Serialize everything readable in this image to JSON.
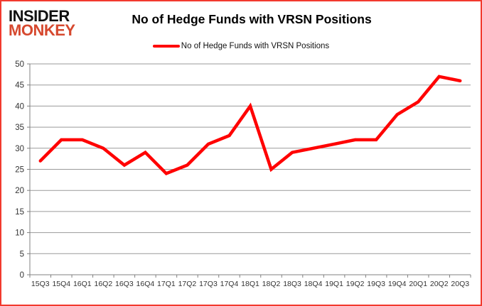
{
  "logo": {
    "line1": "INSIDER",
    "line2": "MONKEY"
  },
  "header": {
    "title": "No of Hedge Funds with VRSN Positions"
  },
  "legend": {
    "label": "No of Hedge Funds with VRSN Positions"
  },
  "chart_data": {
    "type": "line",
    "title": "No of Hedge Funds with VRSN Positions",
    "series_name": "No of Hedge Funds with VRSN Positions",
    "categories": [
      "15Q3",
      "15Q4",
      "16Q1",
      "16Q2",
      "16Q3",
      "16Q4",
      "17Q1",
      "17Q2",
      "17Q3",
      "17Q4",
      "18Q1",
      "18Q2",
      "18Q3",
      "18Q4",
      "19Q1",
      "19Q2",
      "19Q3",
      "19Q4",
      "20Q1",
      "20Q2",
      "20Q3"
    ],
    "values": [
      27,
      32,
      32,
      30,
      26,
      29,
      24,
      26,
      31,
      33,
      40,
      25,
      29,
      30,
      31,
      32,
      32,
      38,
      41,
      47,
      46
    ],
    "xlabel": "",
    "ylabel": "",
    "ylim": [
      0,
      50
    ],
    "ytick_step": 5,
    "grid": true,
    "legend_position": "top",
    "line_color": "#ff0000",
    "grid_color": "#9a9a9a",
    "axis_color": "#808080",
    "tick_label_color": "#333333"
  }
}
